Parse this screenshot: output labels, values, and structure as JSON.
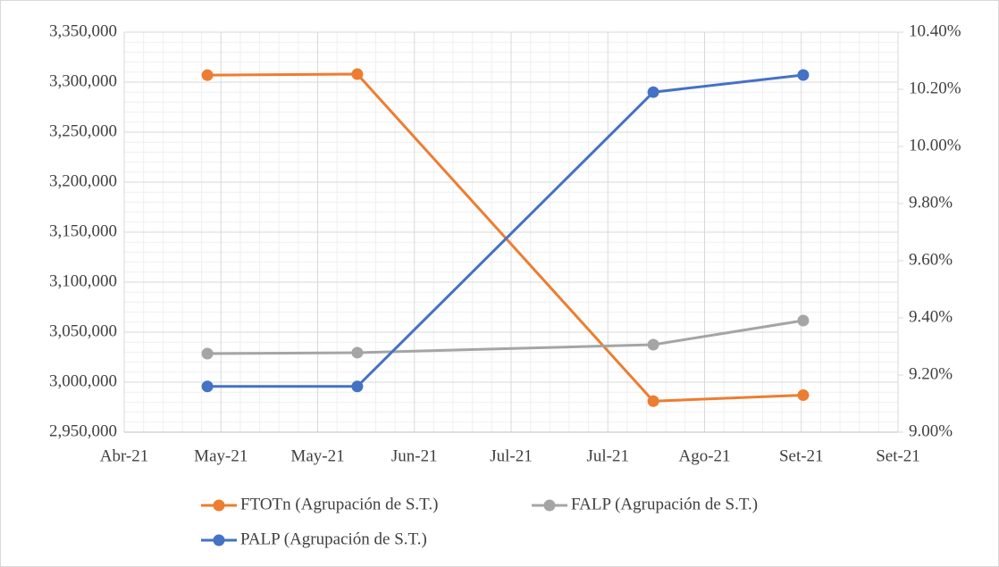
{
  "chart_data": {
    "type": "line",
    "x": [
      0.86,
      2.41,
      5.47,
      7.02
    ],
    "xlim": [
      0,
      8
    ],
    "xticks": [
      {
        "value": 0,
        "label": "Abr-21"
      },
      {
        "value": 1,
        "label": "May-21"
      },
      {
        "value": 2,
        "label": "May-21"
      },
      {
        "value": 3,
        "label": "Jun-21"
      },
      {
        "value": 4,
        "label": "Jul-21"
      },
      {
        "value": 5,
        "label": "Jul-21"
      },
      {
        "value": 6,
        "label": "Ago-21"
      },
      {
        "value": 7,
        "label": "Set-21"
      },
      {
        "value": 8,
        "label": "Set-21"
      }
    ],
    "ylim": [
      2950000,
      3350000
    ],
    "yticks": [
      {
        "value": 2950000,
        "label": "2,950,000"
      },
      {
        "value": 3000000,
        "label": "3,000,000"
      },
      {
        "value": 3050000,
        "label": "3,050,000"
      },
      {
        "value": 3100000,
        "label": "3,100,000"
      },
      {
        "value": 3150000,
        "label": "3,150,000"
      },
      {
        "value": 3200000,
        "label": "3,200,000"
      },
      {
        "value": 3250000,
        "label": "3,250,000"
      },
      {
        "value": 3300000,
        "label": "3,300,000"
      },
      {
        "value": 3350000,
        "label": "3,350,000"
      }
    ],
    "y2lim": [
      9.0,
      10.4
    ],
    "y2ticks": [
      {
        "value": 9.0,
        "label": "9.00%"
      },
      {
        "value": 9.2,
        "label": "9.20%"
      },
      {
        "value": 9.4,
        "label": "9.40%"
      },
      {
        "value": 9.6,
        "label": "9.60%"
      },
      {
        "value": 9.8,
        "label": "9.80%"
      },
      {
        "value": 10.0,
        "label": "10.00%"
      },
      {
        "value": 10.2,
        "label": "10.20%"
      },
      {
        "value": 10.4,
        "label": "10.40%"
      }
    ],
    "grid": true,
    "legend": "bottom",
    "series": [
      {
        "name": "FTOTn (Agrupación de S.T.)",
        "color": "#ed7d31",
        "values": [
          3307000,
          3308000,
          2981000,
          2987000
        ]
      },
      {
        "name": "FALP (Agrupación de S.T.)",
        "color": "#a5a5a5",
        "values": [
          3028600,
          3029500,
          3037500,
          3061600
        ]
      },
      {
        "name": "PALP  (Agrupación de S.T.)",
        "color": "#4472c4",
        "axis": "y2",
        "values": [
          9.16,
          9.16,
          10.19,
          10.25
        ]
      }
    ]
  }
}
